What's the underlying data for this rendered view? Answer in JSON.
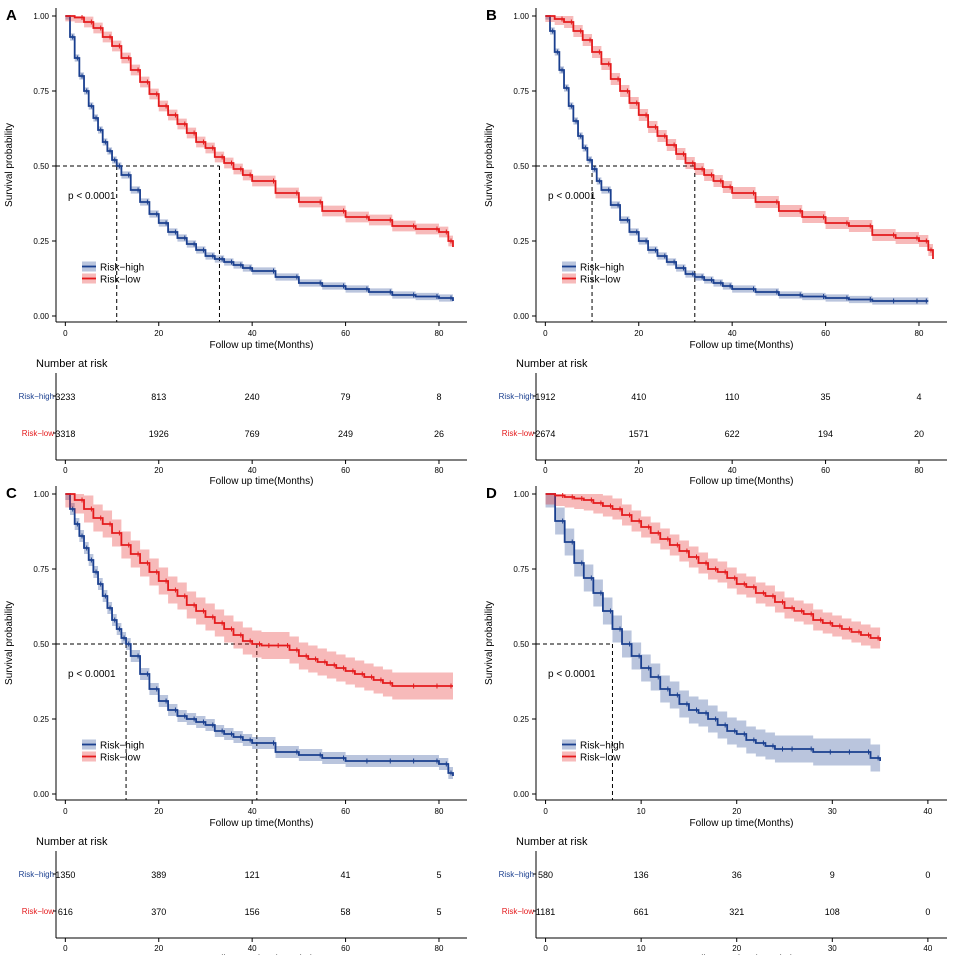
{
  "chart_data": [
    {
      "type": "line",
      "panel_label": "A",
      "ylabel": "Survival probability",
      "xlabel": "Follow up time(Months)",
      "xlim": [
        -2,
        86
      ],
      "ylim": [
        0,
        1
      ],
      "x_ticks": [
        "0",
        "20",
        "40",
        "60",
        "80"
      ],
      "y_ticks": [
        "0.00",
        "0.25",
        "0.50",
        "0.75",
        "1.00"
      ],
      "pvalue": "p < 0.0001",
      "legend": [
        "Risk−high",
        "Risk−low"
      ],
      "median_survival": {
        "Risk−high": 11,
        "Risk−low": 33
      },
      "series": [
        {
          "name": "Risk−high",
          "color": "#1a3f8f",
          "band": 0.012,
          "x": [
            0,
            1,
            2,
            3,
            4,
            5,
            6,
            7,
            8,
            9,
            10,
            11,
            12,
            14,
            16,
            18,
            20,
            22,
            24,
            26,
            28,
            30,
            32,
            34,
            36,
            38,
            40,
            45,
            50,
            55,
            60,
            65,
            70,
            75,
            80,
            83
          ],
          "y": [
            1.0,
            0.93,
            0.86,
            0.8,
            0.75,
            0.7,
            0.66,
            0.62,
            0.58,
            0.55,
            0.52,
            0.5,
            0.47,
            0.42,
            0.38,
            0.34,
            0.31,
            0.28,
            0.26,
            0.24,
            0.22,
            0.2,
            0.19,
            0.18,
            0.17,
            0.16,
            0.15,
            0.13,
            0.11,
            0.1,
            0.09,
            0.08,
            0.07,
            0.065,
            0.06,
            0.05
          ]
        },
        {
          "name": "Risk−low",
          "color": "#e41a1c",
          "band": 0.018,
          "x": [
            0,
            2,
            4,
            6,
            8,
            10,
            12,
            14,
            16,
            18,
            20,
            22,
            24,
            26,
            28,
            30,
            32,
            34,
            36,
            38,
            40,
            45,
            50,
            55,
            60,
            65,
            70,
            75,
            80,
            82,
            83
          ],
          "y": [
            1.0,
            0.995,
            0.98,
            0.96,
            0.93,
            0.9,
            0.86,
            0.82,
            0.78,
            0.74,
            0.7,
            0.67,
            0.64,
            0.61,
            0.58,
            0.56,
            0.53,
            0.51,
            0.49,
            0.47,
            0.45,
            0.41,
            0.38,
            0.35,
            0.33,
            0.32,
            0.3,
            0.29,
            0.28,
            0.25,
            0.23
          ]
        }
      ],
      "risk_table": {
        "title": "Number at risk",
        "x_ticks": [
          "0",
          "20",
          "40",
          "60",
          "80"
        ],
        "rows": [
          {
            "label": "Risk−high",
            "color": "#1a3f8f",
            "values": [
              "3233",
              "813",
              "240",
              "79",
              "8"
            ]
          },
          {
            "label": "Risk−low",
            "color": "#e41a1c",
            "values": [
              "3318",
              "1926",
              "769",
              "249",
              "26"
            ]
          }
        ],
        "xlabel": "Follow up time(Months)"
      }
    },
    {
      "type": "line",
      "panel_label": "B",
      "ylabel": "Survival probability",
      "xlabel": "Follow up time(Months)",
      "xlim": [
        -2,
        86
      ],
      "ylim": [
        0,
        1
      ],
      "x_ticks": [
        "0",
        "20",
        "40",
        "60",
        "80"
      ],
      "y_ticks": [
        "0.00",
        "0.25",
        "0.50",
        "0.75",
        "1.00"
      ],
      "pvalue": "p < 0.0001",
      "legend": [
        "Risk−high",
        "Risk−low"
      ],
      "median_survival": {
        "Risk−high": 10,
        "Risk−low": 32
      },
      "series": [
        {
          "name": "Risk−high",
          "color": "#1a3f8f",
          "band": 0.012,
          "x": [
            0,
            1,
            2,
            3,
            4,
            5,
            6,
            7,
            8,
            9,
            10,
            11,
            12,
            14,
            16,
            18,
            20,
            22,
            24,
            26,
            28,
            30,
            32,
            34,
            36,
            38,
            40,
            45,
            50,
            55,
            60,
            65,
            70,
            75,
            80,
            82
          ],
          "y": [
            1.0,
            0.95,
            0.88,
            0.82,
            0.76,
            0.7,
            0.65,
            0.6,
            0.56,
            0.52,
            0.49,
            0.45,
            0.42,
            0.37,
            0.32,
            0.28,
            0.25,
            0.22,
            0.2,
            0.18,
            0.16,
            0.14,
            0.13,
            0.12,
            0.11,
            0.1,
            0.09,
            0.08,
            0.07,
            0.065,
            0.06,
            0.055,
            0.05,
            0.05,
            0.05,
            0.05
          ]
        },
        {
          "name": "Risk−low",
          "color": "#e41a1c",
          "band": 0.02,
          "x": [
            0,
            2,
            4,
            6,
            8,
            10,
            12,
            14,
            16,
            18,
            20,
            22,
            24,
            26,
            28,
            30,
            32,
            34,
            36,
            38,
            40,
            45,
            50,
            55,
            60,
            65,
            70,
            75,
            80,
            82,
            83
          ],
          "y": [
            1.0,
            0.99,
            0.98,
            0.95,
            0.92,
            0.88,
            0.84,
            0.79,
            0.75,
            0.71,
            0.67,
            0.63,
            0.6,
            0.57,
            0.54,
            0.51,
            0.49,
            0.47,
            0.45,
            0.43,
            0.41,
            0.38,
            0.35,
            0.33,
            0.31,
            0.3,
            0.27,
            0.26,
            0.25,
            0.22,
            0.19
          ]
        }
      ],
      "risk_table": {
        "title": "Number at risk",
        "x_ticks": [
          "0",
          "20",
          "40",
          "60",
          "80"
        ],
        "rows": [
          {
            "label": "Risk−high",
            "color": "#1a3f8f",
            "values": [
              "1912",
              "410",
              "110",
              "35",
              "4"
            ]
          },
          {
            "label": "Risk−low",
            "color": "#e41a1c",
            "values": [
              "2674",
              "1571",
              "622",
              "194",
              "20"
            ]
          }
        ],
        "xlabel": "Follow up time(Months)"
      }
    },
    {
      "type": "line",
      "panel_label": "C",
      "ylabel": "Survival probability",
      "xlabel": "Follow up time(Months)",
      "xlim": [
        -2,
        86
      ],
      "ylim": [
        0,
        1
      ],
      "x_ticks": [
        "0",
        "20",
        "40",
        "60",
        "80"
      ],
      "y_ticks": [
        "0.00",
        "0.25",
        "0.50",
        "0.75",
        "1.00"
      ],
      "pvalue": "p < 0.0001",
      "legend": [
        "Risk−high",
        "Risk−low"
      ],
      "median_survival": {
        "Risk−high": 13,
        "Risk−low": 41
      },
      "series": [
        {
          "name": "Risk−high",
          "color": "#1a3f8f",
          "band": 0.02,
          "x": [
            0,
            1,
            2,
            3,
            4,
            5,
            6,
            7,
            8,
            9,
            10,
            11,
            12,
            13,
            14,
            16,
            18,
            20,
            22,
            24,
            26,
            28,
            30,
            32,
            34,
            36,
            38,
            40,
            45,
            50,
            55,
            60,
            65,
            70,
            75,
            80,
            82,
            83
          ],
          "y": [
            1.0,
            0.95,
            0.9,
            0.86,
            0.82,
            0.78,
            0.74,
            0.7,
            0.66,
            0.62,
            0.58,
            0.55,
            0.52,
            0.5,
            0.46,
            0.4,
            0.35,
            0.31,
            0.28,
            0.26,
            0.25,
            0.24,
            0.23,
            0.21,
            0.2,
            0.19,
            0.18,
            0.17,
            0.14,
            0.13,
            0.12,
            0.11,
            0.11,
            0.11,
            0.11,
            0.1,
            0.07,
            0.06
          ]
        },
        {
          "name": "Risk−low",
          "color": "#e41a1c",
          "band": 0.045,
          "x": [
            0,
            2,
            4,
            6,
            8,
            10,
            12,
            14,
            16,
            18,
            20,
            22,
            24,
            26,
            28,
            30,
            32,
            34,
            36,
            38,
            40,
            42,
            44,
            46,
            48,
            50,
            52,
            54,
            56,
            58,
            60,
            62,
            64,
            66,
            68,
            70,
            75,
            80,
            83
          ],
          "y": [
            1.0,
            0.98,
            0.95,
            0.92,
            0.9,
            0.87,
            0.83,
            0.8,
            0.77,
            0.74,
            0.71,
            0.68,
            0.66,
            0.63,
            0.61,
            0.59,
            0.57,
            0.55,
            0.53,
            0.51,
            0.5,
            0.495,
            0.495,
            0.495,
            0.48,
            0.46,
            0.45,
            0.44,
            0.43,
            0.42,
            0.41,
            0.4,
            0.39,
            0.38,
            0.37,
            0.36,
            0.36,
            0.36,
            0.36
          ]
        }
      ],
      "risk_table": {
        "title": "Number at risk",
        "x_ticks": [
          "0",
          "20",
          "40",
          "60",
          "80"
        ],
        "rows": [
          {
            "label": "Risk−high",
            "color": "#1a3f8f",
            "values": [
              "1350",
              "389",
              "121",
              "41",
              "5"
            ]
          },
          {
            "label": "Risk−low",
            "color": "#e41a1c",
            "values": [
              "616",
              "370",
              "156",
              "58",
              "5"
            ]
          }
        ],
        "xlabel": "Follow up time(Months)"
      }
    },
    {
      "type": "line",
      "panel_label": "D",
      "ylabel": "Survival probability",
      "xlabel": "Follow up time(Months)",
      "xlim": [
        -1,
        42
      ],
      "ylim": [
        0,
        1
      ],
      "x_ticks": [
        "0",
        "10",
        "20",
        "30",
        "40"
      ],
      "y_ticks": [
        "0.00",
        "0.25",
        "0.50",
        "0.75",
        "1.00"
      ],
      "pvalue": "p < 0.0001",
      "legend": [
        "Risk−high",
        "Risk−low"
      ],
      "median_survival": {
        "Risk−high": 7,
        "Risk−low": null
      },
      "series": [
        {
          "name": "Risk−high",
          "color": "#1a3f8f",
          "band": 0.045,
          "x": [
            0,
            1,
            2,
            3,
            4,
            5,
            6,
            7,
            8,
            9,
            10,
            11,
            12,
            13,
            14,
            15,
            16,
            17,
            18,
            19,
            20,
            21,
            22,
            23,
            24,
            25,
            26,
            28,
            30,
            32,
            34,
            35
          ],
          "y": [
            1.0,
            0.91,
            0.84,
            0.77,
            0.72,
            0.67,
            0.61,
            0.55,
            0.5,
            0.46,
            0.42,
            0.39,
            0.35,
            0.33,
            0.3,
            0.28,
            0.27,
            0.25,
            0.23,
            0.21,
            0.2,
            0.18,
            0.17,
            0.16,
            0.15,
            0.15,
            0.15,
            0.14,
            0.14,
            0.14,
            0.12,
            0.11
          ]
        },
        {
          "name": "Risk−low",
          "color": "#e41a1c",
          "band": 0.035,
          "x": [
            0,
            1,
            2,
            3,
            4,
            5,
            6,
            7,
            8,
            9,
            10,
            11,
            12,
            13,
            14,
            15,
            16,
            17,
            18,
            19,
            20,
            21,
            22,
            23,
            24,
            25,
            26,
            27,
            28,
            29,
            30,
            31,
            32,
            33,
            34,
            35
          ],
          "y": [
            1.0,
            0.995,
            0.99,
            0.985,
            0.98,
            0.97,
            0.96,
            0.95,
            0.93,
            0.91,
            0.89,
            0.87,
            0.85,
            0.83,
            0.81,
            0.79,
            0.77,
            0.75,
            0.74,
            0.72,
            0.7,
            0.69,
            0.67,
            0.66,
            0.64,
            0.62,
            0.61,
            0.6,
            0.58,
            0.57,
            0.56,
            0.55,
            0.54,
            0.53,
            0.52,
            0.51
          ]
        }
      ],
      "risk_table": {
        "title": "Number at risk",
        "x_ticks": [
          "0",
          "10",
          "20",
          "30",
          "40"
        ],
        "rows": [
          {
            "label": "Risk−high",
            "color": "#1a3f8f",
            "values": [
              "580",
              "136",
              "36",
              "9",
              "0"
            ]
          },
          {
            "label": "Risk−low",
            "color": "#e41a1c",
            "values": [
              "1181",
              "661",
              "321",
              "108",
              "0"
            ]
          }
        ],
        "xlabel": "Follow up time(Months)"
      }
    }
  ]
}
